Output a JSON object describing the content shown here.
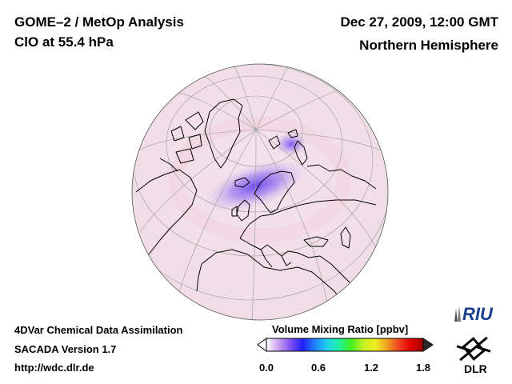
{
  "header": {
    "title": "GOME–2 / MetOp Analysis",
    "species_level": "ClO at 55.4 hPa",
    "datetime": "Dec 27, 2009, 12:00 GMT",
    "region": "Northern Hemisphere"
  },
  "footer": {
    "system": "4DVar Chemical Data Assimilation",
    "version": "SACADA Version 1.7",
    "url": "http://wdc.dlr.de"
  },
  "colorbar": {
    "title": "Volume Mixing Ratio [ppbv]",
    "ticks": [
      "0.0",
      "0.6",
      "1.2",
      "1.8"
    ],
    "min": 0.0,
    "max": 1.8,
    "colors": [
      "#ffffff",
      "#c8a0f0",
      "#8050f0",
      "#2020ff",
      "#2080ff",
      "#20d0f0",
      "#20f0a0",
      "#40f020",
      "#c0f020",
      "#f0f020",
      "#f0a020",
      "#f04020",
      "#e00000",
      "#a00000"
    ]
  },
  "logos": {
    "riu": "RIU",
    "dlr": "DLR"
  },
  "map": {
    "projection": "orthographic",
    "hemisphere": "Northern",
    "max_clo_region": "Scandinavia / Barents Sea",
    "accent_low": "#f3e4ec",
    "accent_high": "#7040f0"
  }
}
